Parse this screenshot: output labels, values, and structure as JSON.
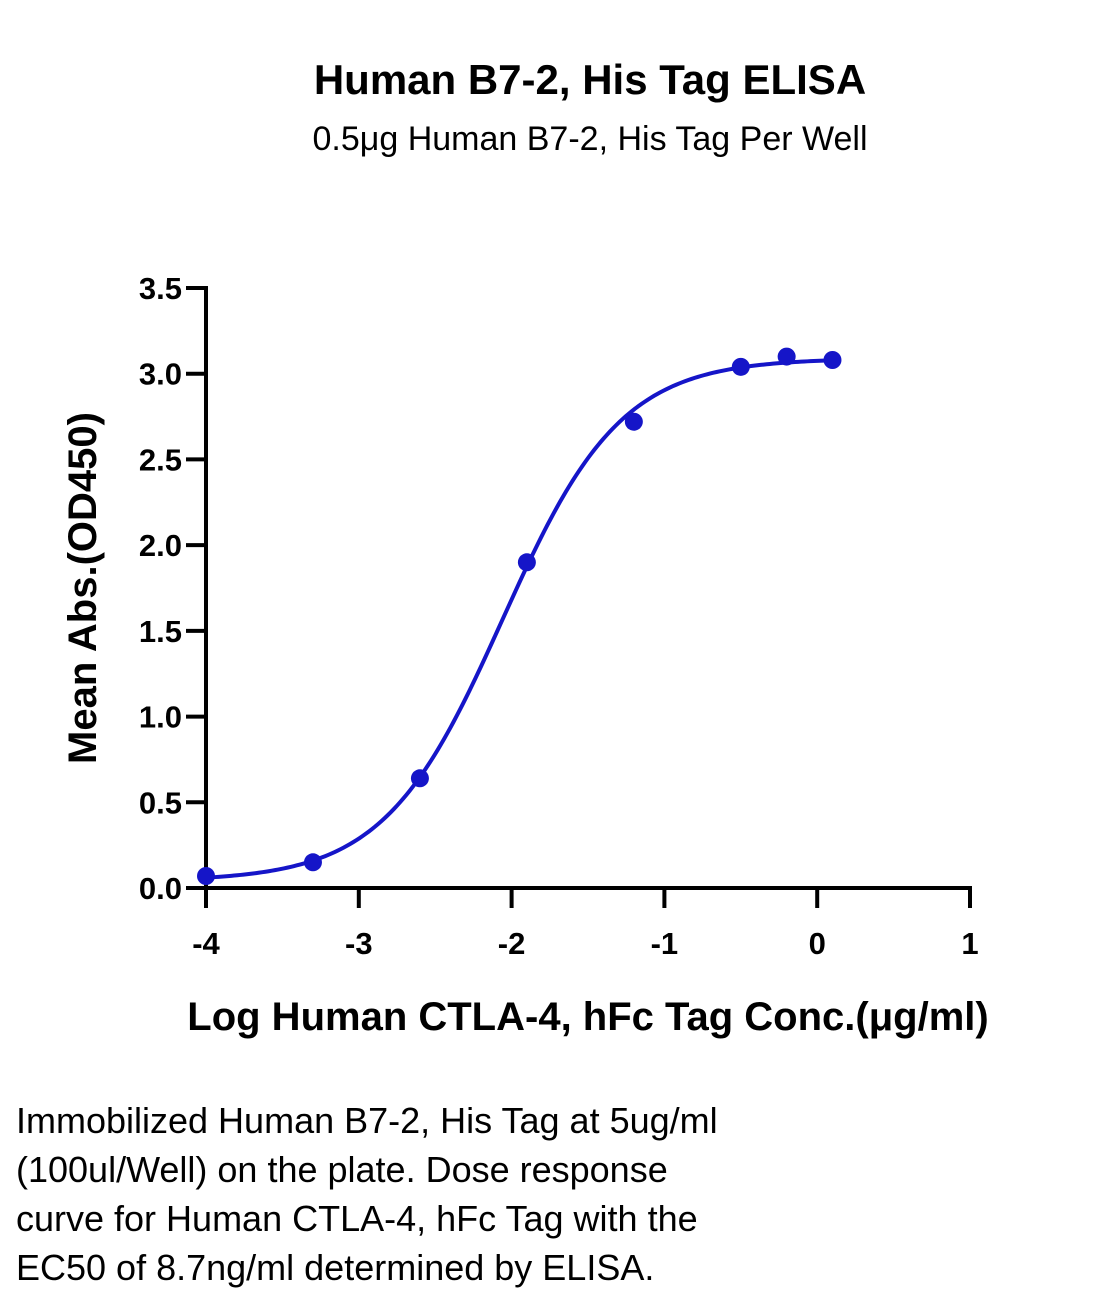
{
  "chart_data": {
    "type": "scatter",
    "title": "Human B7-2, His Tag ELISA",
    "subtitle": "0.5μg Human B7-2, His Tag Per Well",
    "xlabel": "Log Human CTLA-4, hFc  Tag Conc.(μg/ml)",
    "ylabel": "Mean Abs.(OD450)",
    "xlim": [
      -4,
      1
    ],
    "ylim": [
      0,
      3.5
    ],
    "xticks": [
      "-4",
      "-3",
      "-2",
      "-1",
      "0",
      "1"
    ],
    "yticks": [
      "0.0",
      "0.5",
      "1.0",
      "1.5",
      "2.0",
      "2.5",
      "3.0",
      "3.5"
    ],
    "grid": false,
    "color": "#1515c8",
    "series": [
      {
        "points": [
          {
            "x": -4.0,
            "y": 0.07
          },
          {
            "x": -3.3,
            "y": 0.15
          },
          {
            "x": -2.6,
            "y": 0.64
          },
          {
            "x": -1.9,
            "y": 1.9
          },
          {
            "x": -1.2,
            "y": 2.72
          },
          {
            "x": -0.5,
            "y": 3.04
          },
          {
            "x": -0.2,
            "y": 3.1
          },
          {
            "x": 0.1,
            "y": 3.08
          }
        ],
        "fit": {
          "model": "4PL",
          "bottom": 0.04,
          "top": 3.09,
          "log_ec50": -2.06,
          "hill_slope": 1.12
        }
      }
    ]
  },
  "caption": {
    "lines": [
      "Immobilized Human B7-2, His Tag at 5ug/ml",
      "(100ul/Well) on the plate. Dose response",
      "curve for Human CTLA-4, hFc Tag with the",
      "EC50 of 8.7ng/ml determined by ELISA."
    ]
  }
}
